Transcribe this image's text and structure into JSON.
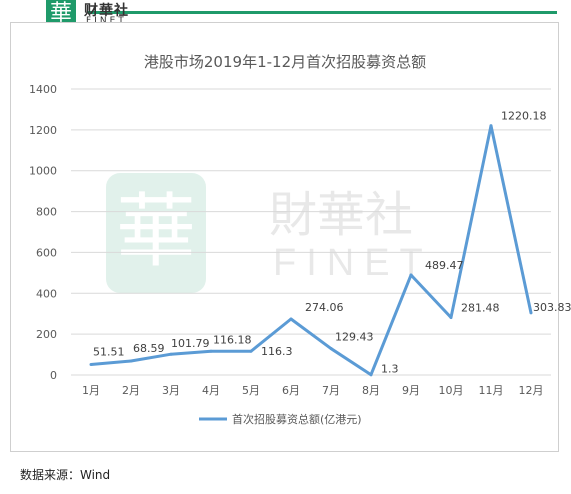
{
  "header": {
    "logo_mark": "華",
    "logo_cn": "财華社",
    "logo_en": "FINET"
  },
  "watermark": {
    "mark": "華",
    "cn": "財華社",
    "en": "FINET"
  },
  "source_text": "数据来源：Wind",
  "colors": {
    "brand": "#1f9a6a",
    "line": "#5b9bd5",
    "grid": "#d9d9d9",
    "axis_text": "#595959",
    "title": "#595959"
  },
  "chart_data": {
    "type": "line",
    "title": "港股市场2019年1-12月首次招股募资总额",
    "categories": [
      "1月",
      "2月",
      "3月",
      "4月",
      "5月",
      "6月",
      "7月",
      "8月",
      "9月",
      "10月",
      "11月",
      "12月"
    ],
    "series": [
      {
        "name": "首次招股募资总额(亿港元)",
        "values": [
          51.51,
          68.59,
          101.79,
          116.18,
          116.3,
          274.06,
          129.43,
          1.3,
          489.47,
          281.48,
          1220.18,
          303.83
        ]
      }
    ],
    "data_labels": [
      "51.51",
      "68.59",
      "101.79",
      "116.18",
      "116.3",
      "274.06",
      "129.43",
      "1.3",
      "489.47",
      "281.48",
      "1220.18",
      "303.83"
    ],
    "yticks": [
      "0",
      "200",
      "400",
      "600",
      "800",
      "1000",
      "1200",
      "1400"
    ],
    "ylim": [
      0,
      1400
    ],
    "grid": true,
    "legend_position": "bottom"
  }
}
